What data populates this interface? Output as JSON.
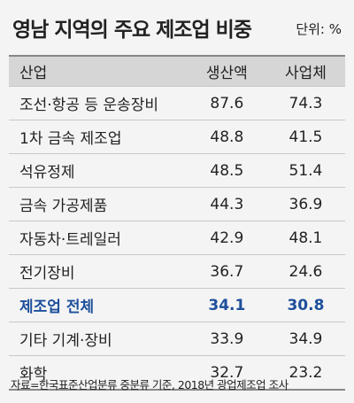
{
  "header": {
    "title": "영남 지역의 주요 제조업 비중",
    "unit": "단위: %"
  },
  "table": {
    "columns": [
      "산업",
      "생산액",
      "사업체"
    ],
    "rows": [
      [
        "조선·항공 등 운송장비",
        87.6,
        74.3
      ],
      [
        "1차 금속 제조업",
        48.8,
        41.5
      ],
      [
        "석유정제",
        48.5,
        51.4
      ],
      [
        "금속 가공제품",
        44.3,
        36.9
      ],
      [
        "자동차·트레일러",
        42.9,
        48.1
      ],
      [
        "전기장비",
        36.7,
        24.6
      ],
      [
        "제조업 전체",
        34.1,
        30.8
      ],
      [
        "기타 기계·장비",
        33.9,
        34.9
      ],
      [
        "화학",
        32.7,
        23.2
      ]
    ],
    "highlight": {
      "row": 6,
      "color": "#1d4f9b"
    }
  },
  "footer": {
    "source": "자료=한국표준산업분류 중분류 기준, 2018년 광업제조업 조사"
  }
}
